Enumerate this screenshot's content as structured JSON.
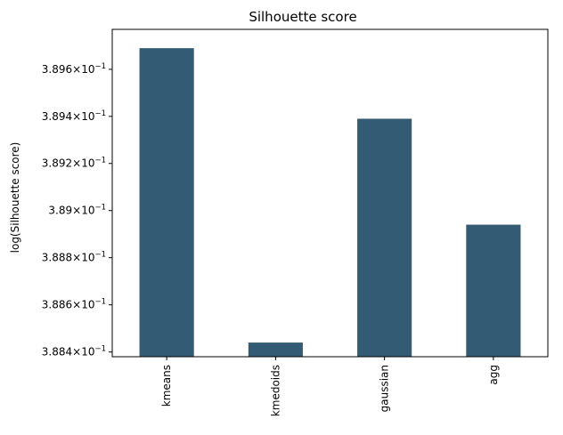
{
  "chart_data": {
    "type": "bar",
    "title": "Silhouette score",
    "xlabel": "",
    "ylabel": "log(Silhouette score)",
    "yscale": "log",
    "categories": [
      "kmeans",
      "kmedoids",
      "gaussian",
      "agg"
    ],
    "values": [
      0.38969,
      0.38844,
      0.38939,
      0.38894
    ],
    "ylim": [
      0.38838,
      0.38977
    ],
    "yticks": [
      {
        "value": 0.3884,
        "mantissa": "3.884",
        "exp": "−1"
      },
      {
        "value": 0.3886,
        "mantissa": "3.886",
        "exp": "−1"
      },
      {
        "value": 0.3888,
        "mantissa": "3.888",
        "exp": "−1"
      },
      {
        "value": 0.389,
        "mantissa": "3.89",
        "exp": "−1"
      },
      {
        "value": 0.3892,
        "mantissa": "3.892",
        "exp": "−1"
      },
      {
        "value": 0.3894,
        "mantissa": "3.894",
        "exp": "−1"
      },
      {
        "value": 0.3896,
        "mantissa": "3.896",
        "exp": "−1"
      }
    ],
    "bar_color": "#335c74",
    "grid": false,
    "legend": "none"
  }
}
